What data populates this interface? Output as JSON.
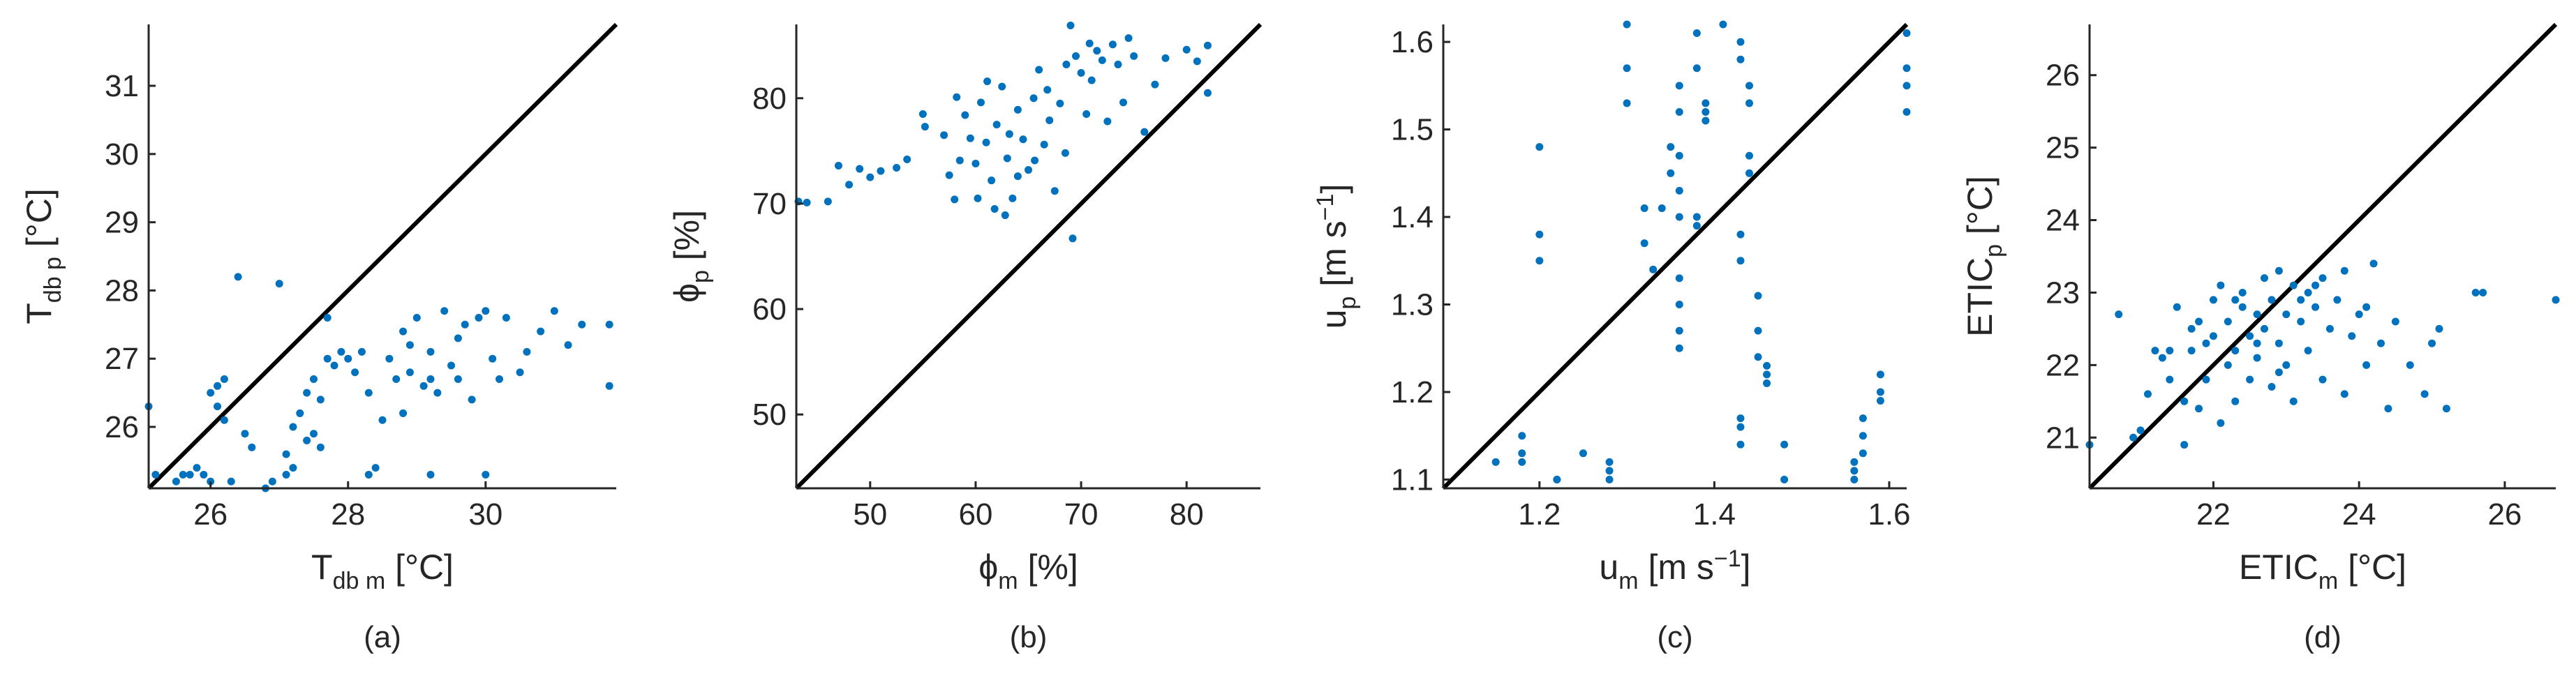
{
  "colors": {
    "points": "#0072BD",
    "axes": "#262626",
    "identity_line": "#000000"
  },
  "chart_data": [
    {
      "type": "scatter",
      "caption": "(a)",
      "xlabel": {
        "main": "T",
        "sub": "db m",
        "unit": "[°C]"
      },
      "ylabel": {
        "main": "T",
        "sub": "db p",
        "unit": "[°C]"
      },
      "xlim": [
        25.1,
        31.9
      ],
      "ylim": [
        25.1,
        31.9
      ],
      "xticks": [
        26,
        28,
        30
      ],
      "yticks": [
        26,
        27,
        28,
        29,
        30,
        31
      ],
      "identity_line": true,
      "points": [
        [
          25.1,
          26.3
        ],
        [
          25.2,
          25.3
        ],
        [
          25.5,
          25.2
        ],
        [
          25.6,
          25.3
        ],
        [
          25.7,
          25.3
        ],
        [
          25.8,
          25.4
        ],
        [
          26.0,
          25.2
        ],
        [
          25.9,
          25.3
        ],
        [
          26.0,
          26.5
        ],
        [
          26.1,
          26.6
        ],
        [
          26.2,
          26.7
        ],
        [
          26.1,
          26.3
        ],
        [
          26.2,
          26.1
        ],
        [
          26.3,
          25.2
        ],
        [
          26.5,
          25.9
        ],
        [
          26.6,
          25.7
        ],
        [
          26.4,
          28.2
        ],
        [
          26.8,
          25.1
        ],
        [
          26.9,
          25.2
        ],
        [
          27.1,
          25.3
        ],
        [
          27.0,
          28.1
        ],
        [
          27.1,
          25.6
        ],
        [
          27.2,
          26.0
        ],
        [
          27.3,
          26.2
        ],
        [
          27.4,
          26.5
        ],
        [
          27.4,
          25.8
        ],
        [
          27.5,
          26.7
        ],
        [
          27.5,
          25.9
        ],
        [
          27.6,
          26.4
        ],
        [
          27.7,
          27.0
        ],
        [
          27.8,
          26.9
        ],
        [
          27.9,
          27.1
        ],
        [
          27.7,
          27.6
        ],
        [
          28.0,
          27.0
        ],
        [
          28.1,
          26.8
        ],
        [
          28.2,
          27.1
        ],
        [
          28.3,
          26.5
        ],
        [
          28.3,
          25.3
        ],
        [
          28.4,
          25.4
        ],
        [
          28.5,
          26.1
        ],
        [
          28.6,
          27.0
        ],
        [
          28.7,
          26.7
        ],
        [
          28.8,
          27.4
        ],
        [
          28.8,
          26.2
        ],
        [
          28.9,
          26.8
        ],
        [
          29.0,
          27.6
        ],
        [
          29.1,
          26.6
        ],
        [
          29.2,
          25.3
        ],
        [
          29.2,
          27.1
        ],
        [
          29.3,
          26.5
        ],
        [
          29.4,
          27.7
        ],
        [
          29.5,
          26.9
        ],
        [
          29.6,
          26.7
        ],
        [
          29.7,
          27.5
        ],
        [
          29.8,
          26.4
        ],
        [
          29.9,
          27.6
        ],
        [
          30.0,
          25.3
        ],
        [
          30.1,
          27.0
        ],
        [
          30.2,
          26.7
        ],
        [
          30.3,
          27.6
        ],
        [
          30.5,
          26.8
        ],
        [
          30.6,
          27.1
        ],
        [
          30.8,
          27.4
        ],
        [
          31.0,
          27.7
        ],
        [
          31.2,
          27.2
        ],
        [
          31.4,
          27.5
        ],
        [
          31.8,
          27.5
        ],
        [
          31.8,
          26.6
        ],
        [
          29.2,
          26.7
        ],
        [
          28.9,
          27.2
        ],
        [
          29.6,
          27.3
        ],
        [
          30.0,
          27.7
        ],
        [
          27.2,
          25.4
        ],
        [
          27.6,
          25.7
        ]
      ]
    },
    {
      "type": "scatter",
      "caption": "(b)",
      "xlabel": {
        "main": "ϕ",
        "sub": "m",
        "unit": "[%]"
      },
      "ylabel": {
        "main": "ϕ",
        "sub": "p",
        "unit": "[%]"
      },
      "xlim": [
        43,
        87
      ],
      "ylim": [
        43,
        87
      ],
      "xticks": [
        50,
        60,
        70,
        80
      ],
      "yticks": [
        50,
        60,
        70,
        80
      ],
      "identity_line": true,
      "points": [
        [
          43.2,
          70.2
        ],
        [
          44.0,
          70.1
        ],
        [
          46.0,
          70.2
        ],
        [
          47.0,
          73.6
        ],
        [
          48.0,
          71.8
        ],
        [
          49.0,
          73.3
        ],
        [
          50.0,
          72.5
        ],
        [
          51.0,
          73.1
        ],
        [
          52.5,
          73.4
        ],
        [
          53.5,
          74.2
        ],
        [
          55.0,
          78.5
        ],
        [
          55.2,
          77.3
        ],
        [
          57.0,
          76.5
        ],
        [
          57.5,
          72.7
        ],
        [
          58.0,
          70.4
        ],
        [
          58.5,
          74.1
        ],
        [
          59.0,
          78.4
        ],
        [
          59.5,
          76.2
        ],
        [
          60.0,
          73.8
        ],
        [
          60.5,
          79.6
        ],
        [
          61.0,
          75.8
        ],
        [
          61.5,
          72.2
        ],
        [
          61.8,
          69.5
        ],
        [
          62.0,
          77.5
        ],
        [
          62.5,
          81.1
        ],
        [
          63.0,
          74.3
        ],
        [
          63.5,
          70.5
        ],
        [
          64.0,
          78.9
        ],
        [
          64.5,
          76.1
        ],
        [
          65.0,
          73.2
        ],
        [
          65.5,
          80.0
        ],
        [
          66.0,
          82.7
        ],
        [
          66.5,
          75.6
        ],
        [
          67.0,
          77.9
        ],
        [
          67.5,
          71.2
        ],
        [
          68.0,
          79.5
        ],
        [
          68.5,
          74.8
        ],
        [
          69.0,
          86.9
        ],
        [
          69.2,
          66.7
        ],
        [
          69.5,
          84.0
        ],
        [
          70.0,
          82.4
        ],
        [
          70.5,
          78.5
        ],
        [
          71.0,
          81.7
        ],
        [
          71.5,
          84.5
        ],
        [
          72.0,
          83.6
        ],
        [
          72.5,
          77.8
        ],
        [
          73.0,
          85.1
        ],
        [
          73.5,
          83.2
        ],
        [
          74.0,
          79.6
        ],
        [
          74.5,
          85.7
        ],
        [
          75.0,
          84.0
        ],
        [
          76.0,
          76.8
        ],
        [
          77.0,
          81.3
        ],
        [
          78.0,
          83.8
        ],
        [
          80.0,
          84.6
        ],
        [
          81.0,
          83.5
        ],
        [
          82.0,
          85.0
        ],
        [
          82.0,
          80.5
        ],
        [
          64.0,
          72.6
        ],
        [
          62.8,
          68.9
        ],
        [
          60.2,
          70.5
        ],
        [
          66.8,
          80.8
        ],
        [
          68.6,
          83.2
        ],
        [
          70.8,
          85.2
        ],
        [
          63.2,
          76.6
        ],
        [
          65.6,
          74.1
        ],
        [
          58.2,
          80.1
        ],
        [
          61.1,
          81.6
        ]
      ]
    },
    {
      "type": "scatter",
      "caption": "(c)",
      "xlabel": {
        "main": "u",
        "sub": "m",
        "unit": "[m s",
        "unit_sup": "−1",
        "unit_end": "]"
      },
      "ylabel": {
        "main": "u",
        "sub": "p",
        "unit": "[m s",
        "unit_sup": "−1",
        "unit_end": "]"
      },
      "xlim": [
        1.09,
        1.62
      ],
      "ylim": [
        1.09,
        1.62
      ],
      "xticks": [
        1.2,
        1.4,
        1.6
      ],
      "yticks": [
        1.1,
        1.2,
        1.3,
        1.4,
        1.5,
        1.6
      ],
      "identity_line": true,
      "points": [
        [
          1.15,
          1.12
        ],
        [
          1.18,
          1.15
        ],
        [
          1.18,
          1.13
        ],
        [
          1.18,
          1.12
        ],
        [
          1.2,
          1.48
        ],
        [
          1.2,
          1.38
        ],
        [
          1.2,
          1.35
        ],
        [
          1.22,
          1.1
        ],
        [
          1.22,
          1.1
        ],
        [
          1.25,
          1.13
        ],
        [
          1.28,
          1.1
        ],
        [
          1.28,
          1.12
        ],
        [
          1.28,
          1.11
        ],
        [
          1.3,
          1.62
        ],
        [
          1.3,
          1.57
        ],
        [
          1.3,
          1.53
        ],
        [
          1.32,
          1.41
        ],
        [
          1.32,
          1.37
        ],
        [
          1.33,
          1.34
        ],
        [
          1.34,
          1.41
        ],
        [
          1.35,
          1.48
        ],
        [
          1.35,
          1.45
        ],
        [
          1.36,
          1.55
        ],
        [
          1.36,
          1.52
        ],
        [
          1.36,
          1.47
        ],
        [
          1.36,
          1.43
        ],
        [
          1.36,
          1.4
        ],
        [
          1.36,
          1.33
        ],
        [
          1.36,
          1.3
        ],
        [
          1.36,
          1.27
        ],
        [
          1.36,
          1.25
        ],
        [
          1.38,
          1.61
        ],
        [
          1.38,
          1.57
        ],
        [
          1.38,
          1.4
        ],
        [
          1.38,
          1.39
        ],
        [
          1.39,
          1.53
        ],
        [
          1.39,
          1.52
        ],
        [
          1.39,
          1.51
        ],
        [
          1.41,
          1.62
        ],
        [
          1.43,
          1.6
        ],
        [
          1.43,
          1.58
        ],
        [
          1.43,
          1.38
        ],
        [
          1.43,
          1.35
        ],
        [
          1.43,
          1.17
        ],
        [
          1.43,
          1.16
        ],
        [
          1.43,
          1.14
        ],
        [
          1.44,
          1.55
        ],
        [
          1.44,
          1.53
        ],
        [
          1.44,
          1.47
        ],
        [
          1.44,
          1.45
        ],
        [
          1.45,
          1.31
        ],
        [
          1.45,
          1.27
        ],
        [
          1.45,
          1.24
        ],
        [
          1.46,
          1.23
        ],
        [
          1.46,
          1.22
        ],
        [
          1.46,
          1.21
        ],
        [
          1.48,
          1.14
        ],
        [
          1.48,
          1.1
        ],
        [
          1.56,
          1.12
        ],
        [
          1.56,
          1.11
        ],
        [
          1.56,
          1.1
        ],
        [
          1.57,
          1.17
        ],
        [
          1.57,
          1.15
        ],
        [
          1.57,
          1.13
        ],
        [
          1.59,
          1.22
        ],
        [
          1.59,
          1.2
        ],
        [
          1.59,
          1.19
        ],
        [
          1.62,
          1.61
        ],
        [
          1.62,
          1.57
        ],
        [
          1.62,
          1.55
        ],
        [
          1.62,
          1.52
        ]
      ]
    },
    {
      "type": "scatter",
      "caption": "(d)",
      "xlabel": {
        "main": "ETIC",
        "sub": "m",
        "unit": "[°C]"
      },
      "ylabel": {
        "main": "ETIC",
        "sub": "p",
        "unit": "[°C]"
      },
      "xlim": [
        20.3,
        26.7
      ],
      "ylim": [
        20.3,
        26.7
      ],
      "xticks": [
        22,
        24,
        26
      ],
      "yticks": [
        21,
        22,
        23,
        24,
        25,
        26
      ],
      "identity_line": true,
      "points": [
        [
          20.3,
          20.9
        ],
        [
          20.7,
          22.7
        ],
        [
          20.9,
          21.0
        ],
        [
          21.0,
          21.1
        ],
        [
          21.1,
          21.6
        ],
        [
          21.2,
          22.2
        ],
        [
          21.3,
          22.1
        ],
        [
          21.4,
          21.8
        ],
        [
          21.5,
          22.8
        ],
        [
          21.6,
          21.5
        ],
        [
          21.6,
          20.9
        ],
        [
          21.7,
          22.5
        ],
        [
          21.7,
          22.2
        ],
        [
          21.8,
          21.4
        ],
        [
          21.8,
          22.6
        ],
        [
          21.9,
          22.3
        ],
        [
          21.9,
          21.8
        ],
        [
          22.0,
          22.9
        ],
        [
          22.0,
          22.4
        ],
        [
          22.1,
          21.2
        ],
        [
          22.1,
          23.1
        ],
        [
          22.2,
          22.0
        ],
        [
          22.2,
          22.6
        ],
        [
          22.3,
          22.2
        ],
        [
          22.3,
          21.5
        ],
        [
          22.4,
          22.8
        ],
        [
          22.4,
          23.0
        ],
        [
          22.5,
          22.4
        ],
        [
          22.5,
          21.8
        ],
        [
          22.6,
          22.7
        ],
        [
          22.6,
          22.1
        ],
        [
          22.7,
          23.2
        ],
        [
          22.7,
          22.5
        ],
        [
          22.8,
          21.7
        ],
        [
          22.8,
          22.9
        ],
        [
          22.9,
          22.3
        ],
        [
          22.9,
          23.3
        ],
        [
          23.0,
          22.7
        ],
        [
          23.0,
          22.0
        ],
        [
          23.1,
          23.1
        ],
        [
          23.1,
          21.5
        ],
        [
          23.2,
          22.6
        ],
        [
          23.2,
          22.9
        ],
        [
          23.3,
          23.0
        ],
        [
          23.3,
          22.2
        ],
        [
          23.4,
          22.8
        ],
        [
          23.5,
          23.2
        ],
        [
          23.5,
          21.8
        ],
        [
          23.6,
          22.5
        ],
        [
          23.7,
          22.9
        ],
        [
          23.8,
          23.3
        ],
        [
          23.8,
          21.6
        ],
        [
          23.9,
          22.4
        ],
        [
          24.0,
          22.7
        ],
        [
          24.1,
          22.0
        ],
        [
          24.2,
          23.4
        ],
        [
          24.3,
          22.3
        ],
        [
          24.4,
          21.4
        ],
        [
          24.5,
          22.6
        ],
        [
          24.7,
          22.0
        ],
        [
          24.9,
          21.6
        ],
        [
          25.0,
          22.3
        ],
        [
          25.1,
          22.5
        ],
        [
          25.2,
          21.4
        ],
        [
          25.6,
          23.0
        ],
        [
          25.7,
          23.0
        ],
        [
          26.7,
          22.9
        ],
        [
          22.6,
          22.3
        ],
        [
          23.4,
          23.1
        ],
        [
          22.3,
          22.9
        ],
        [
          24.1,
          22.8
        ],
        [
          21.4,
          22.2
        ],
        [
          22.9,
          21.9
        ]
      ]
    }
  ]
}
